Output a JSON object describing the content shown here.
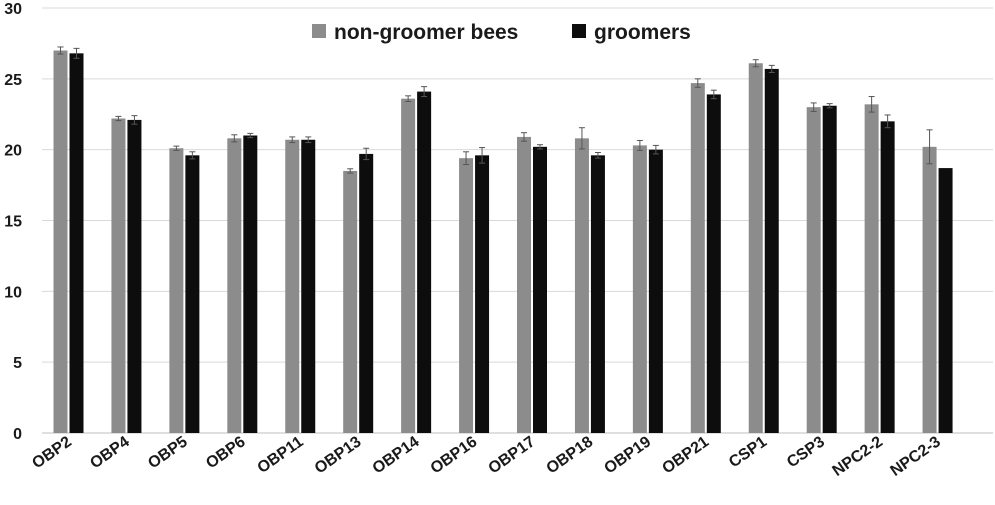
{
  "chart_data": {
    "type": "bar",
    "categories": [
      "OBP2",
      "OBP4",
      "OBP5",
      "OBP6",
      "OBP11",
      "OBP13",
      "OBP14",
      "OBP16",
      "OBP17",
      "OBP18",
      "OBP19",
      "OBP21",
      "CSP1",
      "CSP3",
      "NPC2-2",
      "NPC2-3"
    ],
    "series": [
      {
        "name": "non-groomer bees",
        "color": "#8c8c8c",
        "values": [
          27.0,
          22.2,
          20.1,
          20.8,
          20.7,
          18.5,
          23.6,
          19.4,
          20.9,
          20.8,
          20.3,
          24.7,
          26.1,
          23.0,
          23.2,
          20.2
        ],
        "errors": [
          0.25,
          0.15,
          0.15,
          0.25,
          0.2,
          0.15,
          0.2,
          0.45,
          0.3,
          0.75,
          0.35,
          0.3,
          0.25,
          0.3,
          0.55,
          1.2
        ]
      },
      {
        "name": "groomers",
        "color": "#0d0d0d",
        "values": [
          26.8,
          22.1,
          19.6,
          21.0,
          20.7,
          19.7,
          24.1,
          19.6,
          20.2,
          19.6,
          20.0,
          23.9,
          25.7,
          23.1,
          22.0,
          18.7
        ],
        "errors": [
          0.35,
          0.3,
          0.25,
          0.15,
          0.2,
          0.4,
          0.35,
          0.55,
          0.15,
          0.2,
          0.3,
          0.3,
          0.25,
          0.15,
          0.45,
          0.0
        ]
      }
    ],
    "ylim": [
      0,
      30
    ],
    "yticks": [
      0,
      5,
      10,
      15,
      20,
      25,
      30
    ],
    "grid": true,
    "legend": "top-center",
    "title": "",
    "xlabel": "",
    "ylabel": ""
  }
}
